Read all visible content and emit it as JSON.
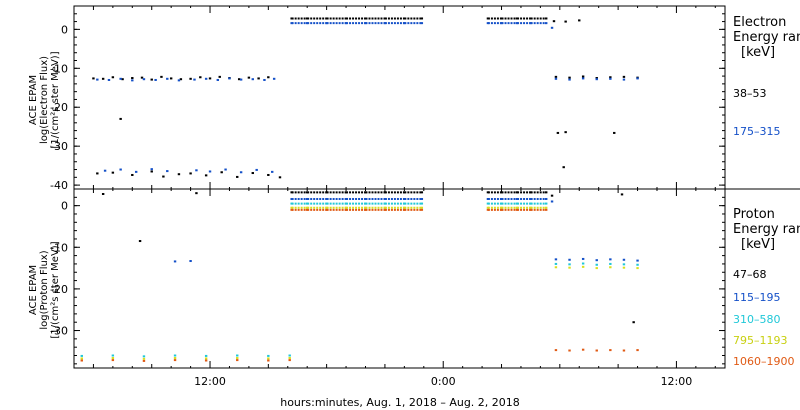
{
  "x_axis_label": "hours:minutes, Aug.  1, 2018 – Aug.  2, 2018",
  "chart_data": [
    {
      "type": "scatter",
      "ylabel_lines": [
        "ACE EPAM",
        "log(Electron Flux)",
        "[1/(cm²s ster MeV)]"
      ],
      "ylim": [
        -41,
        6
      ],
      "yticks": [
        0,
        -10,
        -20,
        -30,
        -40
      ],
      "legend_title_lines": [
        "Electron",
        "Energy ranges",
        "[keV]"
      ],
      "series": [
        {
          "name": "38–53",
          "color": "#000000",
          "points": [
            [
              6,
              -12.6
            ],
            [
              6.5,
              -12.7
            ],
            [
              7,
              -12.3
            ],
            [
              7.5,
              -12.8
            ],
            [
              8,
              -12.5
            ],
            [
              8.5,
              -12.4
            ],
            [
              9,
              -12.9
            ],
            [
              9.5,
              -12.2
            ],
            [
              10,
              -12.6
            ],
            [
              10.5,
              -12.8
            ],
            [
              7.4,
              -23.0
            ],
            [
              6.2,
              -37.0
            ],
            [
              7,
              -36.8
            ],
            [
              8,
              -37.4
            ],
            [
              9,
              -36.5
            ],
            [
              9.6,
              -37.8
            ],
            [
              10.4,
              -37.2
            ],
            [
              11,
              -12.7
            ],
            [
              11.5,
              -12.3
            ],
            [
              12,
              -12.6
            ],
            [
              12.5,
              -12.2
            ],
            [
              13,
              -12.5
            ],
            [
              13.5,
              -12.8
            ],
            [
              14,
              -12.4
            ],
            [
              14.5,
              -12.6
            ],
            [
              15,
              -12.3
            ],
            [
              11,
              -37.0
            ],
            [
              11.8,
              -37.5
            ],
            [
              12.6,
              -36.7
            ],
            [
              13.4,
              -37.9
            ],
            [
              14.2,
              -36.9
            ],
            [
              15,
              -37.4
            ],
            [
              15.6,
              -38.0
            ],
            [
              16.2,
              2.8
            ],
            [
              17,
              2.8
            ],
            [
              18,
              2.8
            ],
            [
              19,
              2.8
            ],
            [
              20,
              2.8
            ],
            [
              21,
              2.8
            ],
            [
              22,
              2.8
            ],
            [
              22.9,
              2.8
            ],
            [
              26.3,
              2.8
            ],
            [
              27,
              2.8
            ],
            [
              27.8,
              2.8
            ],
            [
              28.5,
              2.8
            ],
            [
              29.3,
              2.8
            ],
            [
              29.7,
              2.1
            ],
            [
              30.3,
              2.0
            ],
            [
              31.0,
              2.3
            ],
            [
              29.8,
              -12.2
            ],
            [
              30.5,
              -12.4
            ],
            [
              31.2,
              -12.1
            ],
            [
              31.9,
              -12.5
            ],
            [
              32.6,
              -12.3
            ],
            [
              33.3,
              -12.2
            ],
            [
              34.0,
              -12.4
            ],
            [
              29.9,
              -26.6
            ],
            [
              30.3,
              -26.4
            ],
            [
              32.8,
              -26.6
            ],
            [
              30.2,
              -35.4
            ]
          ]
        },
        {
          "name": "175–315",
          "color": "#1450c8",
          "points": [
            [
              6.2,
              -12.9
            ],
            [
              6.8,
              -13.0
            ],
            [
              7.4,
              -12.7
            ],
            [
              8,
              -13.1
            ],
            [
              8.6,
              -12.8
            ],
            [
              9.2,
              -13.0
            ],
            [
              9.8,
              -12.7
            ],
            [
              10.4,
              -13.1
            ],
            [
              6.6,
              -36.3
            ],
            [
              7.4,
              -36.0
            ],
            [
              8.2,
              -36.6
            ],
            [
              9.0,
              -35.9
            ],
            [
              9.8,
              -36.4
            ],
            [
              11.2,
              -12.9
            ],
            [
              11.8,
              -12.7
            ],
            [
              12.4,
              -13.0
            ],
            [
              13,
              -12.6
            ],
            [
              13.6,
              -12.9
            ],
            [
              14.2,
              -12.8
            ],
            [
              14.8,
              -13.0
            ],
            [
              15.3,
              -12.7
            ],
            [
              11.3,
              -36.2
            ],
            [
              12.0,
              -36.5
            ],
            [
              12.8,
              -36.0
            ],
            [
              13.6,
              -36.7
            ],
            [
              14.4,
              -36.1
            ],
            [
              15.2,
              -36.6
            ],
            [
              16.2,
              1.6
            ],
            [
              17,
              1.6
            ],
            [
              18,
              1.6
            ],
            [
              19,
              1.6
            ],
            [
              20,
              1.6
            ],
            [
              21,
              1.6
            ],
            [
              22,
              1.6
            ],
            [
              22.9,
              1.6
            ],
            [
              26.3,
              1.6
            ],
            [
              27,
              1.6
            ],
            [
              27.8,
              1.6
            ],
            [
              28.5,
              1.6
            ],
            [
              29.3,
              1.6
            ],
            [
              29.6,
              0.4
            ],
            [
              29.8,
              -12.7
            ],
            [
              30.5,
              -12.9
            ],
            [
              31.2,
              -12.6
            ],
            [
              31.9,
              -12.8
            ],
            [
              32.6,
              -12.7
            ],
            [
              33.3,
              -12.9
            ],
            [
              34.0,
              -12.6
            ]
          ]
        }
      ]
    },
    {
      "type": "scatter",
      "ylabel_lines": [
        "ACE EPAM",
        "log(Proton Flux)",
        "[1/(cm²s ster MeV)]"
      ],
      "ylim": [
        -39,
        4
      ],
      "yticks": [
        0,
        -10,
        -20,
        -30
      ],
      "legend_title_lines": [
        "Proton",
        "Energy ranges",
        "[keV]"
      ],
      "series": [
        {
          "name": "47–68",
          "color": "#000000",
          "points": [
            [
              6.5,
              2.8
            ],
            [
              8.4,
              -8.5
            ],
            [
              11.3,
              3.0
            ],
            [
              16.2,
              3.2
            ],
            [
              17,
              3.2
            ],
            [
              18,
              3.2
            ],
            [
              19,
              3.2
            ],
            [
              20,
              3.2
            ],
            [
              21,
              3.2
            ],
            [
              22,
              3.2
            ],
            [
              22.9,
              3.2
            ],
            [
              26.3,
              3.2
            ],
            [
              27,
              3.2
            ],
            [
              27.8,
              3.2
            ],
            [
              28.5,
              3.2
            ],
            [
              29.3,
              3.2
            ],
            [
              29.6,
              2.4
            ],
            [
              33.2,
              2.7
            ],
            [
              33.8,
              -28.0
            ]
          ]
        },
        {
          "name": "115–195",
          "color": "#1450c8",
          "points": [
            [
              10.2,
              -13.4
            ],
            [
              11.0,
              -13.3
            ],
            [
              16.2,
              1.6
            ],
            [
              17,
              1.6
            ],
            [
              18,
              1.6
            ],
            [
              19,
              1.6
            ],
            [
              20,
              1.6
            ],
            [
              21,
              1.6
            ],
            [
              22,
              1.6
            ],
            [
              22.9,
              1.6
            ],
            [
              26.3,
              1.6
            ],
            [
              27,
              1.6
            ],
            [
              27.8,
              1.6
            ],
            [
              28.5,
              1.6
            ],
            [
              29.3,
              1.6
            ],
            [
              29.6,
              1.0
            ],
            [
              29.8,
              -12.9
            ],
            [
              30.5,
              -13.0
            ],
            [
              31.2,
              -12.8
            ],
            [
              31.9,
              -13.1
            ],
            [
              32.6,
              -12.9
            ],
            [
              33.3,
              -13.0
            ],
            [
              34.0,
              -13.2
            ]
          ]
        },
        {
          "name": "310–580",
          "color": "#20c8d8",
          "points": [
            [
              16.2,
              0.5
            ],
            [
              17,
              0.5
            ],
            [
              18,
              0.5
            ],
            [
              19,
              0.5
            ],
            [
              20,
              0.5
            ],
            [
              21,
              0.5
            ],
            [
              22,
              0.5
            ],
            [
              22.9,
              0.5
            ],
            [
              26.3,
              0.5
            ],
            [
              27,
              0.5
            ],
            [
              27.8,
              0.5
            ],
            [
              28.5,
              0.5
            ],
            [
              29.3,
              0.5
            ],
            [
              29.8,
              -14.0
            ],
            [
              30.5,
              -14.1
            ],
            [
              31.2,
              -13.9
            ],
            [
              31.9,
              -14.2
            ],
            [
              32.6,
              -14.0
            ],
            [
              33.3,
              -14.1
            ],
            [
              34.0,
              -14.2
            ],
            [
              5.4,
              -36.1
            ],
            [
              7,
              -36.0
            ],
            [
              8.6,
              -36.2
            ],
            [
              10.2,
              -36.0
            ],
            [
              11.8,
              -36.1
            ],
            [
              13.4,
              -36.0
            ],
            [
              15,
              -36.1
            ],
            [
              16.1,
              -36.0
            ]
          ]
        },
        {
          "name": "795–1193",
          "color": "#d8e020",
          "points": [
            [
              16.2,
              -0.5
            ],
            [
              17,
              -0.5
            ],
            [
              18,
              -0.5
            ],
            [
              19,
              -0.5
            ],
            [
              20,
              -0.5
            ],
            [
              21,
              -0.5
            ],
            [
              22,
              -0.5
            ],
            [
              22.9,
              -0.5
            ],
            [
              26.3,
              -0.5
            ],
            [
              27,
              -0.5
            ],
            [
              27.8,
              -0.5
            ],
            [
              28.5,
              -0.5
            ],
            [
              29.3,
              -0.5
            ],
            [
              29.8,
              -14.8
            ],
            [
              30.5,
              -14.9
            ],
            [
              31.2,
              -14.7
            ],
            [
              31.9,
              -15.0
            ],
            [
              32.6,
              -14.8
            ],
            [
              33.3,
              -14.9
            ],
            [
              34.0,
              -15.0
            ],
            [
              5.4,
              -36.7
            ],
            [
              7,
              -36.6
            ],
            [
              8.6,
              -36.8
            ],
            [
              10.2,
              -36.6
            ],
            [
              11.8,
              -36.7
            ],
            [
              13.4,
              -36.6
            ],
            [
              15,
              -36.7
            ],
            [
              16.1,
              -36.6
            ]
          ]
        },
        {
          "name": "1060–1900",
          "color": "#e05a14",
          "points": [
            [
              16.2,
              -1.0
            ],
            [
              17,
              -1.0
            ],
            [
              18,
              -1.0
            ],
            [
              19,
              -1.0
            ],
            [
              20,
              -1.0
            ],
            [
              21,
              -1.0
            ],
            [
              22,
              -1.0
            ],
            [
              22.9,
              -1.0
            ],
            [
              26.3,
              -1.0
            ],
            [
              27,
              -1.0
            ],
            [
              27.8,
              -1.0
            ],
            [
              28.5,
              -1.0
            ],
            [
              29.3,
              -1.0
            ],
            [
              29.8,
              -34.7
            ],
            [
              30.5,
              -34.8
            ],
            [
              31.2,
              -34.6
            ],
            [
              31.9,
              -34.8
            ],
            [
              32.6,
              -34.7
            ],
            [
              33.3,
              -34.8
            ],
            [
              34.0,
              -34.7
            ],
            [
              5.4,
              -37.2
            ],
            [
              7,
              -37.1
            ],
            [
              8.6,
              -37.3
            ],
            [
              10.2,
              -37.1
            ],
            [
              11.8,
              -37.2
            ],
            [
              13.4,
              -37.1
            ],
            [
              15,
              -37.2
            ],
            [
              16.1,
              -37.1
            ]
          ]
        }
      ]
    }
  ],
  "x_range_hours": [
    5,
    38.5
  ],
  "x_ticks": [
    {
      "hours": 12,
      "label": "12:00"
    },
    {
      "hours": 24,
      "label": "0:00"
    },
    {
      "hours": 36,
      "label": "12:00"
    }
  ]
}
